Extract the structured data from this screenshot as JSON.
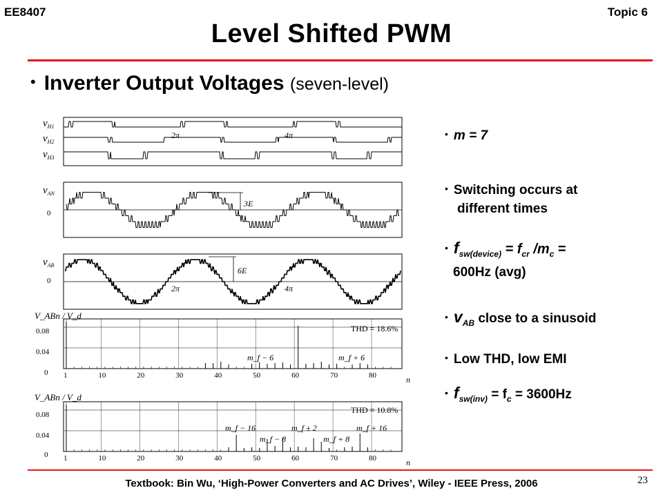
{
  "header": {
    "course": "EE8407",
    "topic": "Topic 6"
  },
  "title": "Level Shifted PWM",
  "heading": {
    "main": "Inverter Output Voltages",
    "sub": "(seven-level)"
  },
  "bullets": {
    "m": "m = 7",
    "switching_1": "Switching occurs at",
    "switching_2": "different times",
    "fsw_f": "f",
    "fsw_sub": "sw(device)",
    "fsw_mid": "= f",
    "fsw_sub2": "cr",
    "fsw_mc": " /m",
    "fsw_sub3": "c",
    "fsw_end": " =",
    "fsw_value": "600Hz (avg)",
    "vab_v": "v",
    "vab_sub": "AB",
    "vab_text": " close to a sinusoid",
    "thd": "Low THD, low EMI",
    "finv_f": "f",
    "finv_sub": "sw(inv)",
    "finv_mid": " =  f",
    "finv_sub2": "c",
    "finv_end": " = 3600Hz"
  },
  "figure": {
    "v_h1": "v",
    "v_h1_sub": "H1",
    "v_h2": "v",
    "v_h2_sub": "H2",
    "v_h3": "v",
    "v_h3_sub": "H3",
    "two_pi": "2π",
    "four_pi": "4π",
    "v_an": "v",
    "v_an_sub": "AN",
    "zero": "0",
    "three_e": "3E",
    "v_ab": "v",
    "v_ab_sub": "AB",
    "six_e": "6E",
    "spec1_ylabel": "V_ABn / V_d",
    "spec1_thd": "THD = 18.6%",
    "spec1_ticks": [
      "0.08",
      "0.04",
      "0"
    ],
    "spec1_m_minus": "m_f − 6",
    "spec1_m_plus": "m_f + 6",
    "spec2_ylabel": "V_ABn / V_d",
    "spec2_thd": "THD = 10.8%",
    "spec2_ticks": [
      "0.08",
      "0.04",
      "0"
    ],
    "spec2_m16m": "m_f − 16",
    "spec2_m2": "m_f ± 2",
    "spec2_m16p": "m_f + 16",
    "spec2_m8m": "m_f − 8",
    "spec2_m8p": "m_f + 8",
    "x_ticks": [
      "1",
      "10",
      "20",
      "30",
      "40",
      "50",
      "60",
      "70",
      "80"
    ],
    "n": "n"
  },
  "footer": "Textbook: Bin Wu, ‘High-Power Converters and AC Drives’, Wiley - IEEE Press, 2006",
  "page_number": "23"
}
